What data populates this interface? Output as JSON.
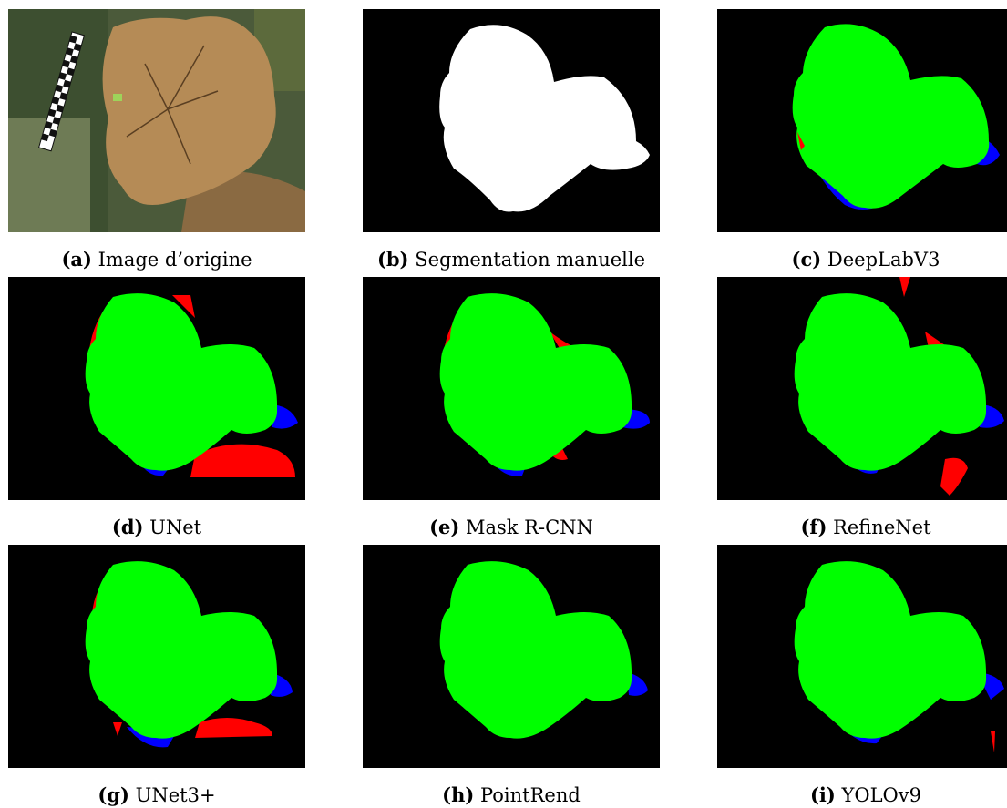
{
  "figure": {
    "panels": [
      {
        "label": "(a)",
        "caption": "Image d’origine",
        "kind": "photo"
      },
      {
        "label": "(b)",
        "caption": "Segmentation manuelle",
        "kind": "mask"
      },
      {
        "label": "(c)",
        "caption": "DeepLabV3",
        "kind": "overlay"
      },
      {
        "label": "(d)",
        "caption": "UNet",
        "kind": "overlay"
      },
      {
        "label": "(e)",
        "caption": "Mask R-CNN",
        "kind": "overlay"
      },
      {
        "label": "(f)",
        "caption": "RefineNet",
        "kind": "overlay"
      },
      {
        "label": "(g)",
        "caption": "UNet3+",
        "kind": "overlay"
      },
      {
        "label": "(h)",
        "caption": "PointRend",
        "kind": "overlay"
      },
      {
        "label": "(i)",
        "caption": "YOLOv9",
        "kind": "overlay"
      }
    ],
    "colors": {
      "background": "#000000",
      "mask": "#ffffff",
      "true_positive": "#00ff00",
      "false_positive": "#ff0000",
      "false_negative": "#0000ff"
    }
  }
}
